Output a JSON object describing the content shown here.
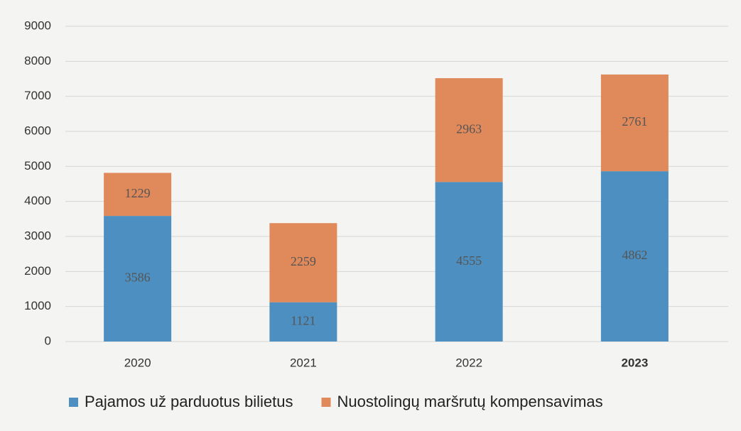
{
  "chart_data": {
    "type": "stacked_bar",
    "categories": [
      "2020",
      "2021",
      "2022",
      "2023"
    ],
    "series": [
      {
        "name": "Pajamos už parduotus bilietus",
        "color": "#4d8fc0",
        "values": [
          3586,
          1121,
          4555,
          4862
        ]
      },
      {
        "name": "Nuostolingų maršrutų kompensavimas",
        "color": "#e0895a",
        "values": [
          1229,
          2259,
          2963,
          2761
        ]
      }
    ],
    "ylim": [
      0,
      9000
    ],
    "yticks": [
      0,
      1000,
      2000,
      3000,
      4000,
      5000,
      6000,
      7000,
      8000,
      9000
    ],
    "grid": true,
    "legend": "bottom"
  }
}
